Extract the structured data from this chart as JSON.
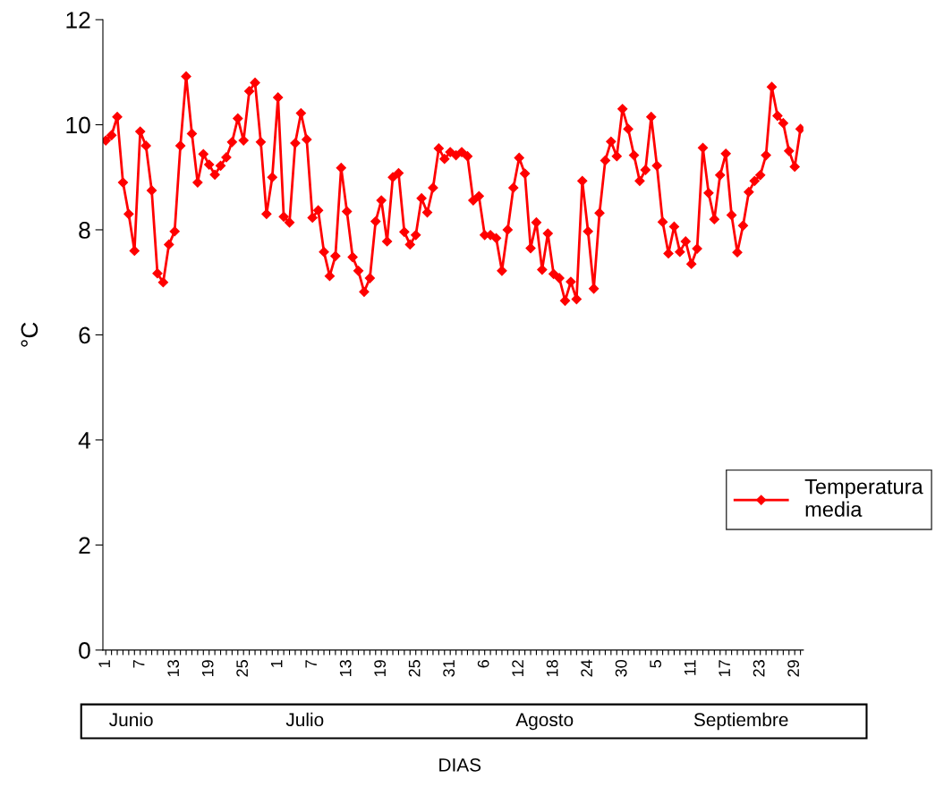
{
  "chart_data": {
    "type": "line",
    "xlabel": "DIAS",
    "ylabel": "°C",
    "categories": [
      "1",
      null,
      null,
      null,
      null,
      null,
      "7",
      null,
      null,
      null,
      null,
      null,
      "13",
      null,
      null,
      null,
      null,
      null,
      "19",
      null,
      null,
      null,
      null,
      null,
      "25",
      null,
      null,
      null,
      null,
      null,
      "1",
      null,
      null,
      null,
      null,
      null,
      "7",
      null,
      null,
      null,
      null,
      null,
      "13",
      null,
      null,
      null,
      null,
      null,
      "19",
      null,
      null,
      null,
      null,
      null,
      "25",
      null,
      null,
      null,
      null,
      null,
      "31",
      null,
      null,
      null,
      null,
      null,
      "6",
      null,
      null,
      null,
      null,
      null,
      "12",
      null,
      null,
      null,
      null,
      null,
      "18",
      null,
      null,
      null,
      null,
      null,
      "24",
      null,
      null,
      null,
      null,
      null,
      "30",
      null,
      null,
      null,
      null,
      null,
      "5",
      null,
      null,
      null,
      null,
      null,
      "11",
      null,
      null,
      null,
      null,
      null,
      "17",
      null,
      null,
      null,
      null,
      null,
      "23",
      null,
      null,
      null,
      null,
      null,
      "29",
      null
    ],
    "series": [
      {
        "name": "Temperatura media",
        "color": "#ff0000",
        "values": [
          9.7,
          9.8,
          10.15,
          8.9,
          8.3,
          7.6,
          9.87,
          9.6,
          8.75,
          7.17,
          7.0,
          7.72,
          7.97,
          9.6,
          10.92,
          9.83,
          8.9,
          9.44,
          9.24,
          9.05,
          9.22,
          9.38,
          9.67,
          10.12,
          9.7,
          10.64,
          10.8,
          9.67,
          8.3,
          9.0,
          10.52,
          8.25,
          8.14,
          9.65,
          10.22,
          9.72,
          8.23,
          8.37,
          7.58,
          7.12,
          7.5,
          9.18,
          8.35,
          7.48,
          7.22,
          6.82,
          7.08,
          8.16,
          8.56,
          7.78,
          9.0,
          9.08,
          7.96,
          7.72,
          7.9,
          8.6,
          8.33,
          8.8,
          9.55,
          9.35,
          9.48,
          9.42,
          9.48,
          9.4,
          8.56,
          8.64,
          7.9,
          7.9,
          7.84,
          7.22,
          8.0,
          8.8,
          9.37,
          9.07,
          7.65,
          8.14,
          7.24,
          7.93,
          7.16,
          7.08,
          6.65,
          7.01,
          6.68,
          8.93,
          7.97,
          6.88,
          8.32,
          9.32,
          9.68,
          9.4,
          10.3,
          9.92,
          9.42,
          8.93,
          9.14,
          10.15,
          9.22,
          8.15,
          7.55,
          8.06,
          7.58,
          7.78,
          7.35,
          7.64,
          9.56,
          8.7,
          8.2,
          9.04,
          9.45,
          8.28,
          7.57,
          8.08,
          8.72,
          8.93,
          9.04,
          9.42,
          10.72,
          10.17,
          10.03,
          9.5,
          9.2,
          9.92
        ]
      }
    ],
    "ylim": [
      0,
      12
    ],
    "yticks": [
      0,
      2,
      4,
      6,
      8,
      10,
      12
    ],
    "grid": false,
    "legend": "right",
    "marker": "diamond",
    "line_style": "solid",
    "annotations": [
      "Junio",
      "Julio",
      "Agosto",
      "Septiembre"
    ]
  }
}
